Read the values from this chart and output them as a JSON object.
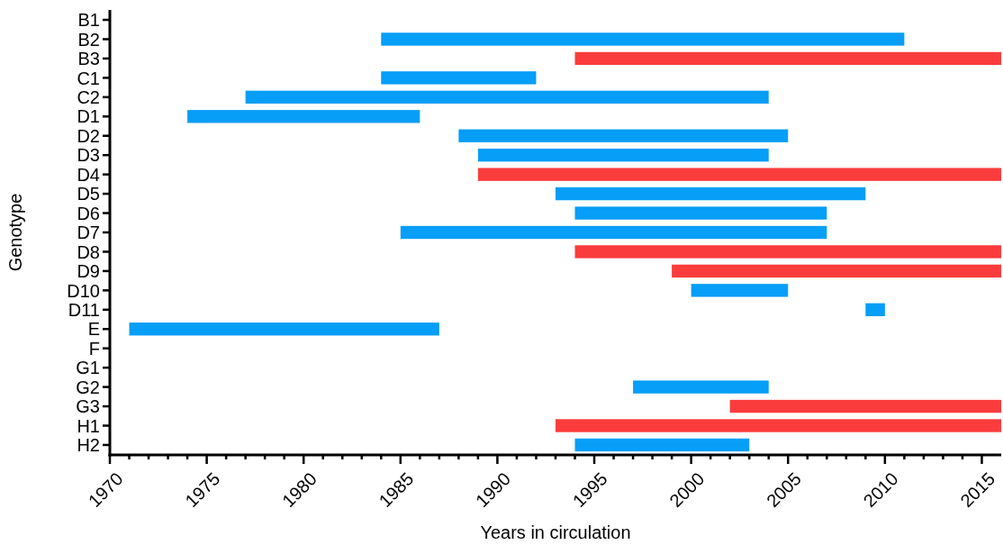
{
  "chart_data": {
    "type": "bar",
    "orientation": "horizontal",
    "xlabel": "Years in circulation",
    "ylabel": "Genotype",
    "categories": [
      "B1",
      "B2",
      "B3",
      "C1",
      "C2",
      "D1",
      "D2",
      "D3",
      "D4",
      "D5",
      "D6",
      "D7",
      "D8",
      "D9",
      "D10",
      "D11",
      "E",
      "F",
      "G1",
      "G2",
      "G3",
      "H1",
      "H2"
    ],
    "series": [
      {
        "color": "#069ef6",
        "base": [
          null,
          1984,
          null,
          1984,
          1977,
          1974,
          1988,
          1989,
          null,
          1993,
          1994,
          1985,
          null,
          null,
          2000,
          2009,
          1971,
          null,
          null,
          1997,
          null,
          null,
          1994
        ],
        "values": [
          null,
          27,
          null,
          8,
          27,
          12,
          17,
          15,
          null,
          16,
          13,
          22,
          null,
          null,
          5,
          1,
          16,
          null,
          null,
          7,
          null,
          null,
          9
        ]
      },
      {
        "color": "#fb3c3c",
        "base": [
          null,
          null,
          1994,
          null,
          null,
          null,
          null,
          null,
          1989,
          null,
          null,
          null,
          1994,
          1999,
          null,
          null,
          null,
          null,
          null,
          null,
          2002,
          1993,
          null
        ],
        "values": [
          null,
          null,
          22,
          null,
          null,
          null,
          null,
          null,
          27,
          null,
          null,
          null,
          22,
          17,
          null,
          null,
          null,
          null,
          null,
          null,
          14,
          23,
          null
        ]
      }
    ],
    "xlim": [
      1970,
      2016
    ],
    "xticks": [
      1970,
      {
        "value": 1971,
        "label": null
      },
      {
        "value": 1972,
        "label": null
      },
      {
        "value": 1973,
        "label": null
      },
      {
        "value": 1974,
        "label": null
      },
      1975,
      {
        "value": 1976,
        "label": null
      },
      {
        "value": 1977,
        "label": null
      },
      {
        "value": 1978,
        "label": null
      },
      {
        "value": 1979,
        "label": null
      },
      1980,
      {
        "value": 1981,
        "label": null
      },
      {
        "value": 1982,
        "label": null
      },
      {
        "value": 1983,
        "label": null
      },
      {
        "value": 1984,
        "label": null
      },
      1985,
      {
        "value": 1986,
        "label": null
      },
      {
        "value": 1987,
        "label": null
      },
      {
        "value": 1988,
        "label": null
      },
      {
        "value": 1989,
        "label": null
      },
      1990,
      {
        "value": 1991,
        "label": null
      },
      {
        "value": 1992,
        "label": null
      },
      {
        "value": 1993,
        "label": null
      },
      {
        "value": 1994,
        "label": null
      },
      1995,
      {
        "value": 1996,
        "label": null
      },
      {
        "value": 1997,
        "label": null
      },
      {
        "value": 1998,
        "label": null
      },
      {
        "value": 1999,
        "label": null
      },
      2000,
      {
        "value": 2001,
        "label": null
      },
      {
        "value": 2002,
        "label": null
      },
      {
        "value": 2003,
        "label": null
      },
      {
        "value": 2004,
        "label": null
      },
      2005,
      {
        "value": 2006,
        "label": null
      },
      {
        "value": 2007,
        "label": null
      },
      {
        "value": 2008,
        "label": null
      },
      {
        "value": 2009,
        "label": null
      },
      2010,
      {
        "value": 2011,
        "label": null
      },
      {
        "value": 2012,
        "label": null
      },
      {
        "value": 2013,
        "label": null
      },
      {
        "value": 2014,
        "label": null
      },
      2015
    ],
    "grid": false
  }
}
